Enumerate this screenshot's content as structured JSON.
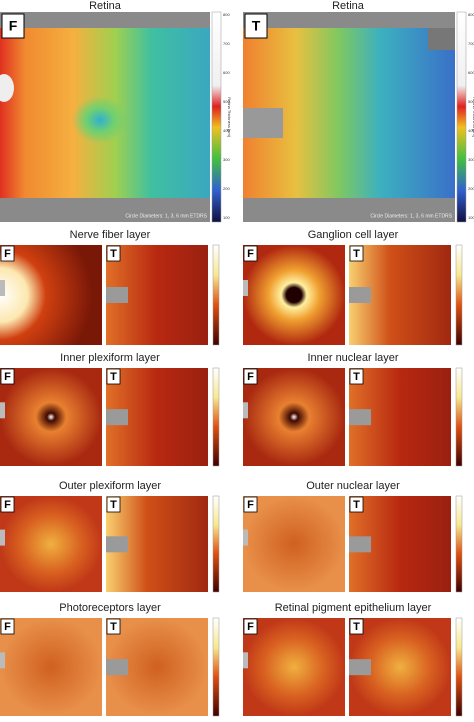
{
  "retina": [
    {
      "title": "Retina",
      "label": "F",
      "colorbar_title": "Retina Thickness [µm]",
      "colorbar_ticks": [
        "800",
        "700",
        "600",
        "500",
        "400",
        "300",
        "200",
        "100"
      ],
      "note": "Circle Diameters: 1, 3, 6 mm ETDRS"
    },
    {
      "title": "Retina",
      "label": "T",
      "colorbar_title": "Retina Thickness [µm]",
      "colorbar_ticks": [
        "800",
        "700",
        "600",
        "500",
        "400",
        "300",
        "200",
        "100"
      ],
      "note": "Circle Diameters: 1, 3, 6 mm ETDRS"
    }
  ],
  "layers": [
    {
      "title": "Nerve fiber layer",
      "labels": [
        "F",
        "T"
      ]
    },
    {
      "title": "Ganglion cell layer",
      "labels": [
        "F",
        "T"
      ]
    },
    {
      "title": "Inner plexiform layer",
      "labels": [
        "F",
        "T"
      ]
    },
    {
      "title": "Inner nuclear layer",
      "labels": [
        "F",
        "T"
      ]
    },
    {
      "title": "Outer plexiform layer",
      "labels": [
        "F",
        "T"
      ]
    },
    {
      "title": "Outer nuclear layer",
      "labels": [
        "F",
        "T"
      ]
    },
    {
      "title": "Photoreceptors layer",
      "labels": [
        "F",
        "T"
      ]
    },
    {
      "title": "Retinal pigment epithelium layer",
      "labels": [
        "F",
        "T"
      ]
    }
  ]
}
